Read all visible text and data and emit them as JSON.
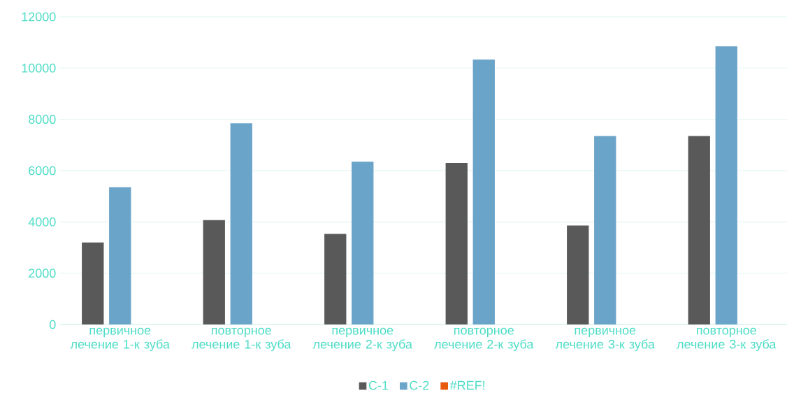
{
  "chart_data": {
    "type": "bar",
    "categories": [
      "первичное лечение 1-к зуба",
      "повторное лечение 1-к зуба",
      "первичное лечение 2-к зуба",
      "повторное лечение 2-к зуба",
      "первичное лечение 3-к зуба",
      "повторное лечение 3-к зуба"
    ],
    "series": [
      {
        "name": "C-1",
        "color": "#595959",
        "values": [
          3200,
          4070,
          3530,
          6300,
          3860,
          7350
        ]
      },
      {
        "name": "C-2",
        "color": "#6ba4c9",
        "values": [
          5350,
          7850,
          6350,
          10330,
          7350,
          10850
        ]
      },
      {
        "name": "#REF!",
        "color": "#e8590c",
        "values": [
          null,
          null,
          null,
          null,
          null,
          null
        ]
      }
    ],
    "ylim": [
      0,
      12000
    ],
    "yticks": [
      0,
      2000,
      4000,
      6000,
      8000,
      10000,
      12000
    ],
    "grid": "y",
    "legend": "bottom"
  }
}
